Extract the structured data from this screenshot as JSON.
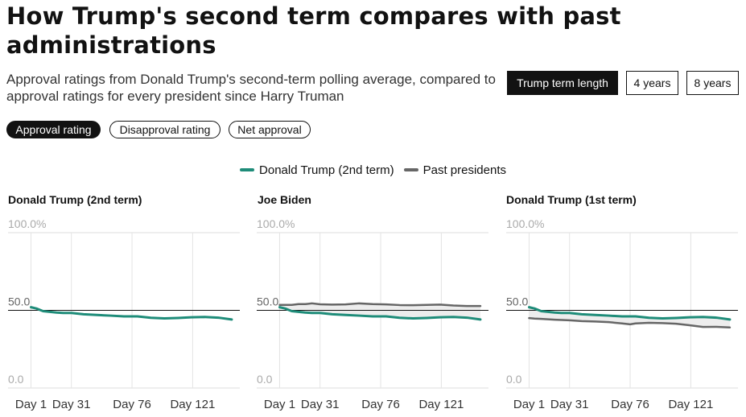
{
  "header": {
    "title": "How Trump's second term compares with past administrations",
    "subtitle": "Approval ratings from Donald Trump's second-term polling average, compared to approval ratings for every president since Harry Truman"
  },
  "term_toggle": {
    "options": [
      "Trump term length",
      "4 years",
      "8 years"
    ],
    "selected": "Trump term length"
  },
  "metric_tabs": {
    "options": [
      "Approval rating",
      "Disapproval rating",
      "Net approval"
    ],
    "selected": "Approval rating"
  },
  "colors": {
    "trump2": "#1e8c79",
    "past": "#666666",
    "fill": "#ededed",
    "ref_line": "#121212"
  },
  "chart_data": [
    {
      "type": "line",
      "title": "Donald Trump (2nd term)",
      "legend": [
        "Donald Trump (2nd term)",
        "Past presidents"
      ],
      "y_ticks": [
        "100.0%",
        "50.0",
        "0.0"
      ],
      "x_ticks": [
        "Day 1",
        "Day 31",
        "Day 76",
        "Day 121"
      ],
      "x_tick_values": [
        1,
        31,
        76,
        121
      ],
      "xlim": [
        -16,
        156
      ],
      "ylim": [
        0,
        100
      ],
      "reference_y": 50,
      "series": [
        {
          "name": "Donald Trump (2nd term)",
          "color": "#1e8c79",
          "x": [
            1,
            5,
            10,
            15,
            20,
            25,
            31,
            40,
            50,
            60,
            70,
            80,
            90,
            100,
            110,
            120,
            130,
            140,
            150
          ],
          "y": [
            52.0,
            51.2,
            49.5,
            49.0,
            48.6,
            48.3,
            48.3,
            47.5,
            47.0,
            46.6,
            46.1,
            46.1,
            45.2,
            44.8,
            45.1,
            45.5,
            45.7,
            45.3,
            44.1
          ]
        }
      ]
    },
    {
      "type": "line",
      "title": "Joe Biden",
      "y_ticks": [
        "100.0%",
        "50.0",
        "0.0"
      ],
      "x_ticks": [
        "Day 1",
        "Day 31",
        "Day 76",
        "Day 121"
      ],
      "x_tick_values": [
        1,
        31,
        76,
        121
      ],
      "xlim": [
        -16,
        156
      ],
      "ylim": [
        0,
        100
      ],
      "reference_y": 50,
      "series": [
        {
          "name": "Donald Trump (2nd term)",
          "color": "#1e8c79",
          "x": [
            1,
            5,
            10,
            15,
            20,
            25,
            31,
            40,
            50,
            60,
            70,
            80,
            90,
            100,
            110,
            120,
            130,
            140,
            150
          ],
          "y": [
            52.0,
            51.2,
            49.5,
            49.0,
            48.6,
            48.3,
            48.3,
            47.5,
            47.0,
            46.6,
            46.1,
            46.1,
            45.2,
            44.8,
            45.1,
            45.5,
            45.7,
            45.3,
            44.1
          ]
        },
        {
          "name": "Past presidents",
          "color": "#666666",
          "x": [
            1,
            5,
            10,
            15,
            20,
            25,
            31,
            40,
            50,
            60,
            70,
            80,
            90,
            100,
            110,
            120,
            130,
            140,
            150
          ],
          "y": [
            53.5,
            53.5,
            53.5,
            54.0,
            54.0,
            54.5,
            53.9,
            53.7,
            53.8,
            54.5,
            54.0,
            53.8,
            53.4,
            53.3,
            53.5,
            53.7,
            53.1,
            52.8,
            52.8
          ]
        }
      ]
    },
    {
      "type": "line",
      "title": "Donald Trump (1st term)",
      "y_ticks": [
        "100.0%",
        "50.0",
        "0.0"
      ],
      "x_ticks": [
        "Day 1",
        "Day 31",
        "Day 76",
        "Day 121"
      ],
      "x_tick_values": [
        1,
        31,
        76,
        121
      ],
      "xlim": [
        -16,
        156
      ],
      "ylim": [
        0,
        100
      ],
      "reference_y": 50,
      "series": [
        {
          "name": "Donald Trump (2nd term)",
          "color": "#1e8c79",
          "x": [
            1,
            5,
            10,
            15,
            20,
            25,
            31,
            40,
            50,
            60,
            70,
            80,
            90,
            100,
            110,
            120,
            130,
            140,
            150
          ],
          "y": [
            52.0,
            51.2,
            49.5,
            49.0,
            48.6,
            48.3,
            48.3,
            47.5,
            47.0,
            46.6,
            46.1,
            46.1,
            45.2,
            44.8,
            45.1,
            45.5,
            45.7,
            45.3,
            44.1
          ]
        },
        {
          "name": "Past presidents",
          "color": "#666666",
          "x": [
            1,
            5,
            10,
            20,
            31,
            40,
            50,
            60,
            70,
            76,
            80,
            90,
            100,
            110,
            120,
            130,
            140,
            150
          ],
          "y": [
            45.0,
            44.7,
            44.5,
            44.0,
            43.6,
            43.1,
            42.8,
            42.4,
            41.6,
            41.0,
            41.6,
            42.0,
            41.8,
            41.4,
            40.4,
            39.3,
            39.4,
            39.0
          ]
        }
      ]
    }
  ]
}
